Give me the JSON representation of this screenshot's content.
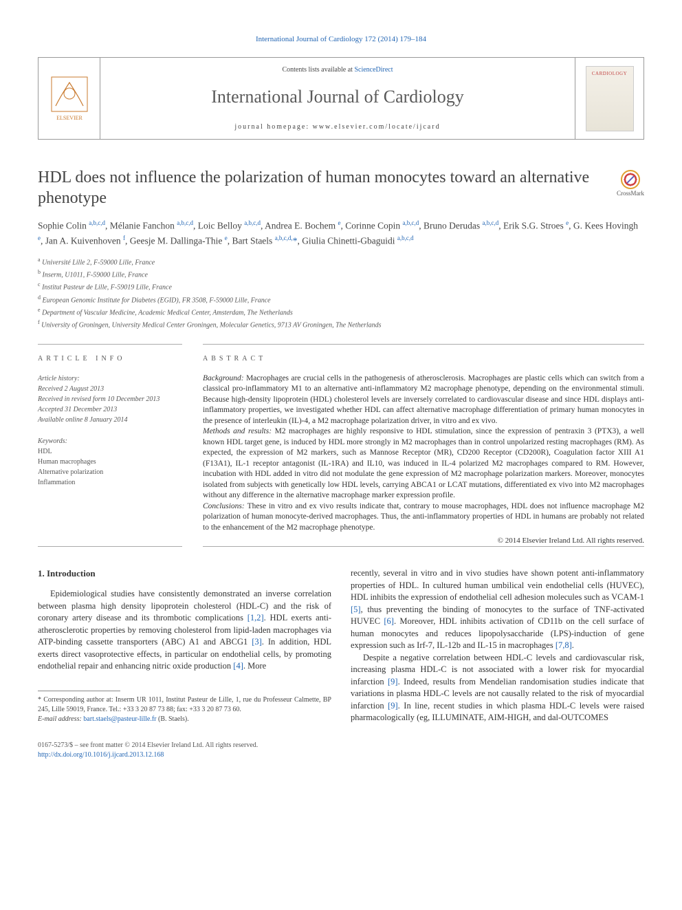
{
  "journal_link_top": "International Journal of Cardiology 172 (2014) 179–184",
  "header": {
    "contents_prefix": "Contents lists available at ",
    "contents_link": "ScienceDirect",
    "journal_title": "International Journal of Cardiology",
    "homepage_prefix": "journal homepage: ",
    "homepage_url": "www.elsevier.com/locate/ijcard",
    "cover_label": "CARDIOLOGY"
  },
  "crossmark_label": "CrossMark",
  "title": "HDL does not influence the polarization of human monocytes toward an alternative phenotype",
  "authors_html": "Sophie Colin <sup>a,b,c,d</sup>, Mélanie Fanchon <sup>a,b,c,d</sup>, Loic Belloy <sup>a,b,c,d</sup>, Andrea E. Bochem <sup>e</sup>, Corinne Copin <sup>a,b,c,d</sup>, Bruno Derudas <sup>a,b,c,d</sup>, Erik S.G. Stroes <sup>e</sup>, G. Kees Hovingh <sup>e</sup>, Jan A. Kuivenhoven <sup>f</sup>, Geesje M. Dallinga-Thie <sup>e</sup>, Bart Staels <sup>a,b,c,d,</sup><span class=\"corr-star\">*</span>, Giulia Chinetti-Gbaguidi <sup>a,b,c,d</sup>",
  "affiliations": [
    {
      "sup": "a",
      "text": "Université Lille 2, F-59000 Lille, France"
    },
    {
      "sup": "b",
      "text": "Inserm, U1011, F-59000 Lille, France"
    },
    {
      "sup": "c",
      "text": "Institut Pasteur de Lille, F-59019 Lille, France"
    },
    {
      "sup": "d",
      "text": "European Genomic Institute for Diabetes (EGID), FR 3508, F-59000 Lille, France"
    },
    {
      "sup": "e",
      "text": "Department of Vascular Medicine, Academic Medical Center, Amsterdam, The Netherlands"
    },
    {
      "sup": "f",
      "text": "University of Groningen, University Medical Center Groningen, Molecular Genetics, 9713 AV Groningen, The Netherlands"
    }
  ],
  "article_info_head": "article info",
  "abstract_head": "abstract",
  "history": {
    "label": "Article history:",
    "received": "Received 2 August 2013",
    "revised": "Received in revised form 10 December 2013",
    "accepted": "Accepted 31 December 2013",
    "online": "Available online 8 January 2014"
  },
  "keywords": {
    "head": "Keywords:",
    "items": [
      "HDL",
      "Human macrophages",
      "Alternative polarization",
      "Inflammation"
    ]
  },
  "abstract": {
    "background_head": "Background: ",
    "background": "Macrophages are crucial cells in the pathogenesis of atherosclerosis. Macrophages are plastic cells which can switch from a classical pro-inflammatory M1 to an alternative anti-inflammatory M2 macrophage phenotype, depending on the environmental stimuli. Because high-density lipoprotein (HDL) cholesterol levels are inversely correlated to cardiovascular disease and since HDL displays anti-inflammatory properties, we investigated whether HDL can affect alternative macrophage differentiation of primary human monocytes in the presence of interleukin (IL)-4, a M2 macrophage polarization driver, in vitro and ex vivo.",
    "methods_head": "Methods and results: ",
    "methods": "M2 macrophages are highly responsive to HDL stimulation, since the expression of pentraxin 3 (PTX3), a well known HDL target gene, is induced by HDL more strongly in M2 macrophages than in control unpolarized resting macrophages (RM). As expected, the expression of M2 markers, such as Mannose Receptor (MR), CD200 Receptor (CD200R), Coagulation factor XIII A1 (F13A1), IL-1 receptor antagonist (IL-1RA) and IL10, was induced in IL-4 polarized M2 macrophages compared to RM. However, incubation with HDL added in vitro did not modulate the gene expression of M2 macrophage polarization markers. Moreover, monocytes isolated from subjects with genetically low HDL levels, carrying ABCA1 or LCAT mutations, differentiated ex vivo into M2 macrophages without any difference in the alternative macrophage marker expression profile.",
    "conclusions_head": "Conclusions: ",
    "conclusions": "These in vitro and ex vivo results indicate that, contrary to mouse macrophages, HDL does not influence macrophage M2 polarization of human monocyte-derived macrophages. Thus, the anti-inflammatory properties of HDL in humans are probably not related to the enhancement of the M2 macrophage phenotype.",
    "copyright": "© 2014 Elsevier Ireland Ltd. All rights reserved."
  },
  "intro_head": "1. Introduction",
  "intro_p1_a": "Epidemiological studies have consistently demonstrated an inverse correlation between plasma high density lipoprotein cholesterol (HDL-C) and the risk of coronary artery disease and its thrombotic complications ",
  "intro_ref1": "[1,2]",
  "intro_p1_b": ". HDL exerts anti-atherosclerotic properties by removing cholesterol from lipid-laden macrophages via ATP-binding cassette transporters (ABC) A1 and ABCG1 ",
  "intro_ref2": "[3]",
  "intro_p1_c": ". In addition, HDL exerts direct vasoprotective effects, in particular on endothelial cells, by promoting endothelial repair and enhancing nitric oxide production ",
  "intro_ref3": "[4]",
  "intro_p1_d": ". More",
  "intro_p2_a": "recently, several in vitro and in vivo studies have shown potent anti-inflammatory properties of HDL. In cultured human umbilical vein endothelial cells (HUVEC), HDL inhibits the expression of endothelial cell adhesion molecules such as VCAM-1 ",
  "intro_ref4": "[5]",
  "intro_p2_b": ", thus preventing the binding of monocytes to the surface of TNF-activated HUVEC ",
  "intro_ref5": "[6]",
  "intro_p2_c": ". Moreover, HDL inhibits activation of CD11b on the cell surface of human monocytes and reduces lipopolysaccharide (LPS)-induction of gene expression such as Irf-7, IL-12b and IL-15 in macrophages ",
  "intro_ref6": "[7,8]",
  "intro_p2_d": ".",
  "intro_p3_a": "Despite a negative correlation between HDL-C levels and cardiovascular risk, increasing plasma HDL-C is not associated with a lower risk for myocardial infarction ",
  "intro_ref7": "[9]",
  "intro_p3_b": ". Indeed, results from Mendelian randomisation studies indicate that variations in plasma HDL-C levels are not causally related to the risk of myocardial infarction ",
  "intro_ref8": "[9]",
  "intro_p3_c": ". In line, recent studies in which plasma HDL-C levels were raised pharmacologically (eg, ILLUMINATE, AIM-HIGH, and dal-OUTCOMES",
  "footnote_corr": "* Corresponding author at: Inserm UR 1011, Institut Pasteur de Lille, 1, rue du Professeur Calmette, BP 245, Lille 59019, France. Tel.: +33 3 20 87 73 88; fax: +33 3 20 87 73 60.",
  "footnote_email_label": "E-mail address: ",
  "footnote_email": "bart.staels@pasteur-lille.fr",
  "footnote_email_suffix": " (B. Staels).",
  "footer_issn": "0167-5273/$ – see front matter © 2014 Elsevier Ireland Ltd. All rights reserved.",
  "footer_doi": "http://dx.doi.org/10.1016/j.ijcard.2013.12.168",
  "colors": {
    "link": "#2265b3",
    "text": "#333333",
    "muted": "#555555",
    "border": "#aaaaaa"
  }
}
